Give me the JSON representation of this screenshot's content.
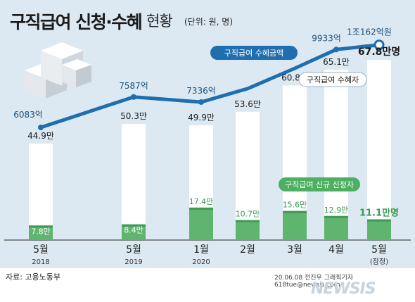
{
  "header": {
    "title": "구직급여 신청·수혜",
    "subtitle": "현황",
    "unit": "(단위: 원, 명)"
  },
  "footer": {
    "source": "자료: 고용노동부",
    "credit": "20.06.08 전진우 그래픽기자 618tue@newsis.com",
    "watermark": "NEWSIS"
  },
  "chart_data": {
    "type": "bar",
    "categories": [
      "5월 2018",
      "5월 2019",
      "1월 2020",
      "2월",
      "3월",
      "4월",
      "5월 (잠정)"
    ],
    "x_labels": [
      {
        "month": "5월",
        "year": "2018"
      },
      {
        "month": "5월",
        "year": "2019"
      },
      {
        "month": "1월",
        "year": "2020"
      },
      {
        "month": "2월",
        "year": ""
      },
      {
        "month": "3월",
        "year": ""
      },
      {
        "month": "4월",
        "year": ""
      },
      {
        "month": "5월",
        "year": "(잠정)"
      }
    ],
    "series": [
      {
        "name": "구직급여 수혜금액",
        "type": "line",
        "color": "#1f6eb0",
        "values": [
          6083,
          7587,
          7336,
          8000,
          9000,
          9933,
          10162
        ],
        "labels": [
          "6083억",
          "7587억",
          "7336억",
          "",
          "",
          "9933억",
          "1조162억원"
        ]
      },
      {
        "name": "구직급여 수혜자",
        "type": "bar",
        "color": "#ffffff",
        "values": [
          44.9,
          50.3,
          49.9,
          53.6,
          60.8,
          65.1,
          67.8
        ],
        "labels": [
          "44.9만",
          "50.3만",
          "49.9만",
          "53.6만",
          "60.8만",
          "65.1만",
          "67.8만명"
        ]
      },
      {
        "name": "구직급여 신규 신청자",
        "type": "bar",
        "color": "#5fb56e",
        "values": [
          7.8,
          8.4,
          17.4,
          10.7,
          15.6,
          12.9,
          11.1
        ],
        "labels": [
          "7.8만",
          "8.4만",
          "17.4만",
          "10.7만",
          "15.6만",
          "12.9만",
          "11.1만명"
        ]
      }
    ],
    "legend": [
      {
        "label": "구직급여 수혜금액",
        "color": "#1f6eb0"
      },
      {
        "label": "구직급여 수혜자",
        "color": "#ffffff"
      },
      {
        "label": "구직급여 신규 신청자",
        "color": "#4caf62"
      }
    ],
    "grid": false
  }
}
